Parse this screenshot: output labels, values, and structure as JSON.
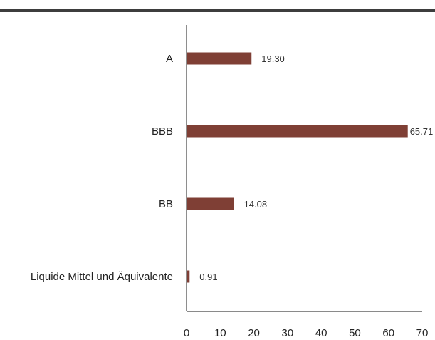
{
  "chart_data": {
    "type": "bar",
    "orientation": "horizontal",
    "categories": [
      "A",
      "BBB",
      "BB",
      "Liquide Mittel und Äquivalente"
    ],
    "values": [
      19.3,
      65.71,
      14.08,
      0.91
    ],
    "value_labels": [
      "19.30",
      "65.71",
      "14.08",
      "0.91"
    ],
    "xlim": [
      0,
      70
    ],
    "xticks": [
      "0",
      "10",
      "20",
      "30",
      "40",
      "50",
      "60",
      "70"
    ],
    "bar_color": "#7f3f35",
    "axis_color": "#444444",
    "title": "",
    "xlabel": "",
    "ylabel": "",
    "grid": false,
    "legend": "none"
  }
}
